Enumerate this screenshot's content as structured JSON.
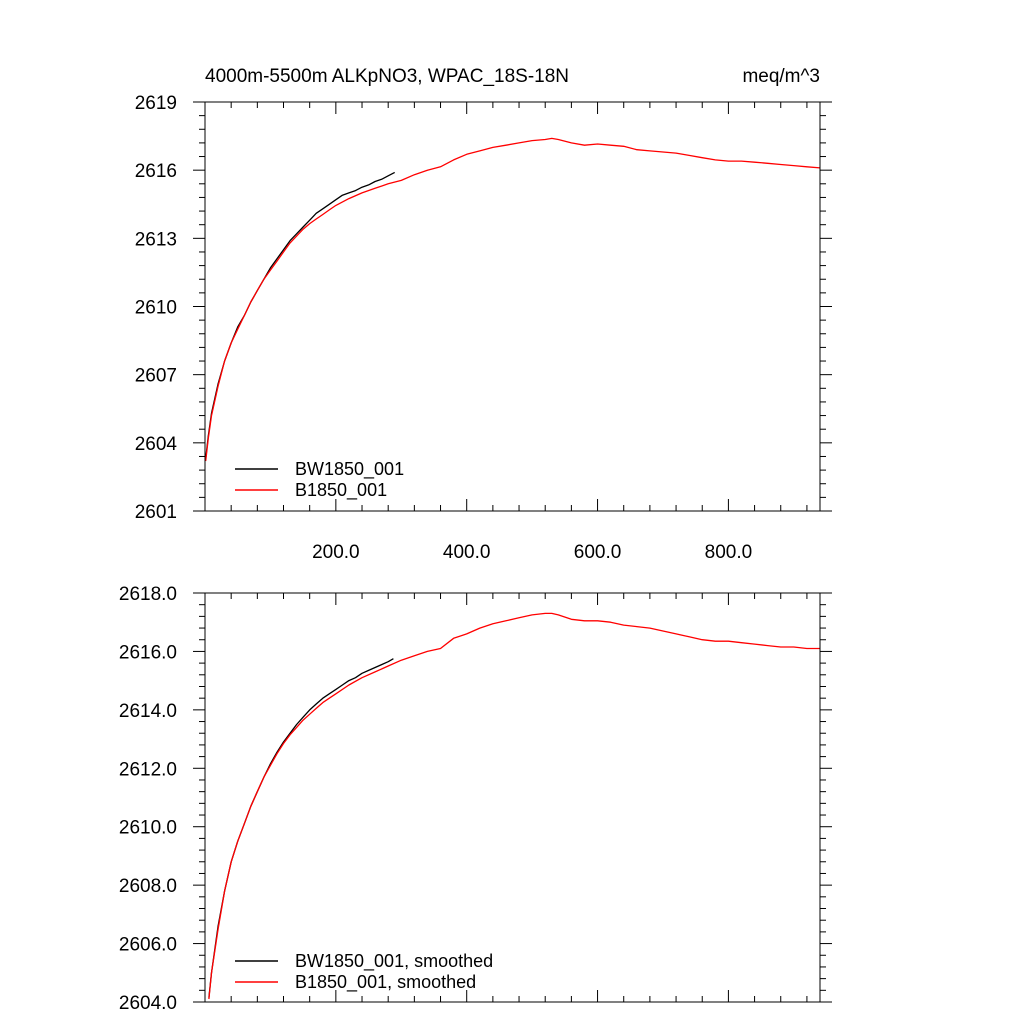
{
  "chart_data": [
    {
      "type": "line",
      "title": "4000m-5500m ALKpNO3, WPAC_18S-18N",
      "units": "meq/m^3",
      "xlim": [
        0,
        940
      ],
      "ylim": [
        2601,
        2619
      ],
      "x_ticks": [
        200,
        400,
        600,
        800
      ],
      "x_tick_labels": [
        "200.0",
        "400.0",
        "600.0",
        "800.0"
      ],
      "y_ticks": [
        2601,
        2604,
        2607,
        2610,
        2613,
        2616,
        2619
      ],
      "y_tick_labels": [
        "2601",
        "2604",
        "2607",
        "2610",
        "2613",
        "2616",
        "2619"
      ],
      "legend_position": "bottom-left",
      "series": [
        {
          "name": "BW1850_001",
          "color": "#000000",
          "x": [
            1,
            5,
            10,
            20,
            30,
            40,
            50,
            60,
            70,
            80,
            90,
            100,
            110,
            120,
            130,
            140,
            150,
            160,
            170,
            180,
            190,
            200,
            210,
            220,
            230,
            240,
            250,
            260,
            270,
            280,
            290
          ],
          "y": [
            2603.3,
            2604.3,
            2605.3,
            2606.6,
            2607.6,
            2608.4,
            2609.1,
            2609.6,
            2610.2,
            2610.7,
            2611.2,
            2611.7,
            2612.1,
            2612.5,
            2612.9,
            2613.2,
            2613.5,
            2613.8,
            2614.1,
            2614.3,
            2614.5,
            2614.7,
            2614.9,
            2615.0,
            2615.1,
            2615.25,
            2615.35,
            2615.5,
            2615.6,
            2615.75,
            2615.9
          ]
        },
        {
          "name": "B1850_001",
          "color": "#ff0000",
          "x": [
            1,
            5,
            10,
            20,
            30,
            40,
            50,
            60,
            70,
            80,
            90,
            100,
            110,
            120,
            130,
            140,
            150,
            160,
            170,
            180,
            190,
            200,
            220,
            240,
            260,
            280,
            300,
            320,
            340,
            360,
            380,
            400,
            420,
            440,
            460,
            480,
            500,
            520,
            530,
            540,
            560,
            580,
            600,
            620,
            640,
            660,
            680,
            700,
            720,
            740,
            760,
            780,
            800,
            820,
            840,
            860,
            880,
            900,
            920,
            940
          ],
          "y": [
            2603.2,
            2604.2,
            2605.2,
            2606.5,
            2607.6,
            2608.4,
            2609.0,
            2609.6,
            2610.2,
            2610.7,
            2611.2,
            2611.6,
            2612.0,
            2612.4,
            2612.8,
            2613.1,
            2613.4,
            2613.65,
            2613.85,
            2614.05,
            2614.25,
            2614.45,
            2614.75,
            2615.0,
            2615.2,
            2615.4,
            2615.55,
            2615.8,
            2616.0,
            2616.15,
            2616.45,
            2616.7,
            2616.85,
            2617.0,
            2617.1,
            2617.2,
            2617.3,
            2617.35,
            2617.4,
            2617.35,
            2617.2,
            2617.1,
            2617.15,
            2617.1,
            2617.05,
            2616.9,
            2616.85,
            2616.8,
            2616.75,
            2616.65,
            2616.55,
            2616.45,
            2616.4,
            2616.4,
            2616.35,
            2616.3,
            2616.25,
            2616.2,
            2616.15,
            2616.1
          ]
        }
      ]
    },
    {
      "type": "line",
      "title": "",
      "xlim": [
        0,
        940
      ],
      "ylim": [
        2604.0,
        2618.0
      ],
      "x_ticks": [
        200,
        400,
        600,
        800
      ],
      "x_tick_labels": [],
      "y_ticks": [
        2604,
        2606,
        2608,
        2610,
        2612,
        2614,
        2616,
        2618
      ],
      "y_tick_labels": [
        "2604.0",
        "2606.0",
        "2608.0",
        "2610.0",
        "2612.0",
        "2614.0",
        "2616.0",
        "2618.0"
      ],
      "legend_position": "bottom-left",
      "series": [
        {
          "name": "BW1850_001, smoothed",
          "color": "#000000",
          "x": [
            6,
            10,
            20,
            30,
            40,
            50,
            60,
            70,
            80,
            90,
            100,
            110,
            120,
            130,
            140,
            150,
            160,
            170,
            180,
            190,
            200,
            210,
            220,
            230,
            240,
            250,
            260,
            270,
            280,
            288
          ],
          "y": [
            2604.15,
            2605.0,
            2606.6,
            2607.8,
            2608.8,
            2609.5,
            2610.1,
            2610.7,
            2611.2,
            2611.7,
            2612.15,
            2612.55,
            2612.9,
            2613.2,
            2613.5,
            2613.75,
            2614.0,
            2614.2,
            2614.4,
            2614.55,
            2614.7,
            2614.85,
            2615.0,
            2615.1,
            2615.25,
            2615.35,
            2615.45,
            2615.55,
            2615.65,
            2615.75
          ]
        },
        {
          "name": "B1850_001, smoothed",
          "color": "#ff0000",
          "x": [
            6,
            10,
            20,
            30,
            40,
            50,
            60,
            70,
            80,
            90,
            100,
            110,
            120,
            130,
            140,
            150,
            160,
            170,
            180,
            190,
            200,
            220,
            240,
            260,
            280,
            300,
            320,
            340,
            360,
            380,
            400,
            420,
            440,
            460,
            480,
            500,
            520,
            530,
            540,
            560,
            580,
            600,
            620,
            640,
            660,
            680,
            700,
            720,
            740,
            760,
            780,
            800,
            820,
            840,
            860,
            880,
            900,
            920,
            940
          ],
          "y": [
            2604.1,
            2605.0,
            2606.5,
            2607.8,
            2608.8,
            2609.5,
            2610.1,
            2610.7,
            2611.2,
            2611.7,
            2612.1,
            2612.5,
            2612.85,
            2613.15,
            2613.4,
            2613.65,
            2613.85,
            2614.05,
            2614.25,
            2614.4,
            2614.55,
            2614.85,
            2615.1,
            2615.3,
            2615.5,
            2615.7,
            2615.85,
            2616.0,
            2616.1,
            2616.45,
            2616.6,
            2616.8,
            2616.95,
            2617.05,
            2617.15,
            2617.25,
            2617.3,
            2617.3,
            2617.25,
            2617.1,
            2617.05,
            2617.05,
            2617.0,
            2616.9,
            2616.85,
            2616.8,
            2616.7,
            2616.6,
            2616.5,
            2616.4,
            2616.35,
            2616.35,
            2616.3,
            2616.25,
            2616.2,
            2616.15,
            2616.15,
            2616.1,
            2616.1
          ]
        }
      ]
    }
  ]
}
